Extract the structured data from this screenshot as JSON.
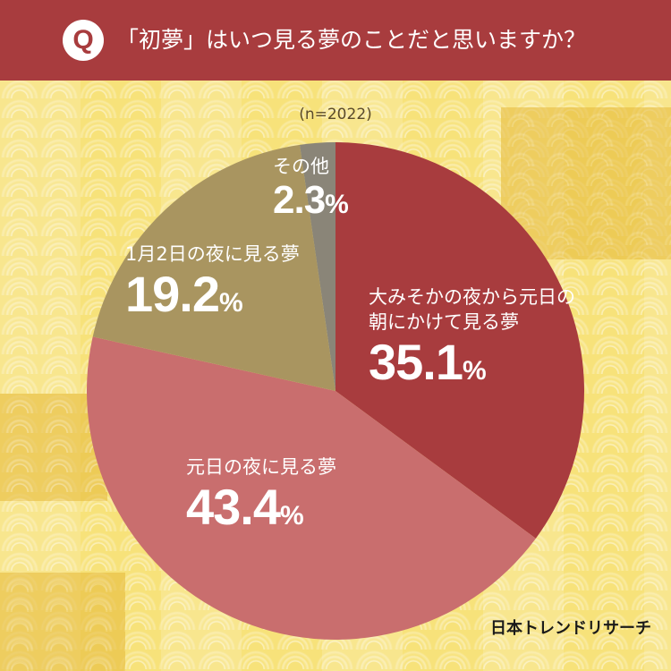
{
  "header": {
    "badge": "Q",
    "question": "「初夢」はいつ見る夢のことだと思いますか？"
  },
  "sample_size": "(n=2022)",
  "brand": {
    "logo_text": "日本トレンドリサーチ"
  },
  "colors": {
    "header_bg": "#a83c3e",
    "slice_new_year_eve_to_day": "#a83c3e",
    "slice_new_year_day_night": "#c96e6e",
    "slice_jan2_night": "#a99560",
    "slice_other": "#8a8578"
  },
  "chart_data": {
    "type": "pie",
    "title": "「初夢」はいつ見る夢のことだと思いますか？",
    "n": 2022,
    "start_angle_deg": 0,
    "direction": "clockwise",
    "slices": [
      {
        "label_lines": [
          "大みそかの夜から元日の",
          "朝にかけて見る夢"
        ],
        "value": 35.1,
        "display": "35.1",
        "unit": "%",
        "color": "#a83c3e"
      },
      {
        "label_lines": [
          "元日の夜に見る夢"
        ],
        "value": 43.4,
        "display": "43.4",
        "unit": "%",
        "color": "#c96e6e"
      },
      {
        "label_lines": [
          "1月2日の夜に見る夢"
        ],
        "value": 19.2,
        "display": "19.2",
        "unit": "%",
        "color": "#a99560"
      },
      {
        "label_lines": [
          "その他"
        ],
        "value": 2.3,
        "display": "2.3",
        "unit": "%",
        "color": "#8a8578"
      }
    ]
  }
}
